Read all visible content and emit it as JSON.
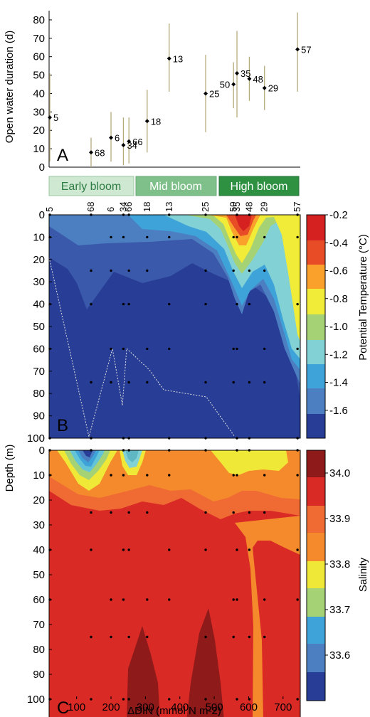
{
  "chart_data": [
    {
      "type": "scatter",
      "panel": "A",
      "ylabel": "Open water duration (d)",
      "ylim": [
        0,
        85
      ],
      "yticks": [
        0,
        10,
        20,
        30,
        40,
        50,
        60,
        70,
        80
      ],
      "xlim": [
        20,
        750
      ],
      "error_bar_color": "#b5a97a",
      "points": [
        {
          "label": "5",
          "x": 22,
          "y": 27,
          "lo": 3,
          "hi": 51
        },
        {
          "label": "68",
          "x": 142,
          "y": 8,
          "lo": 0,
          "hi": 16
        },
        {
          "label": "6",
          "x": 200,
          "y": 16,
          "lo": 3,
          "hi": 30
        },
        {
          "label": "34",
          "x": 236,
          "y": 12,
          "lo": 1,
          "hi": 27
        },
        {
          "label": "66",
          "x": 252,
          "y": 14,
          "lo": 2,
          "hi": 27
        },
        {
          "label": "18",
          "x": 305,
          "y": 25,
          "lo": 8,
          "hi": 42
        },
        {
          "label": "13",
          "x": 369,
          "y": 59,
          "lo": 41,
          "hi": 78
        },
        {
          "label": "25",
          "x": 475,
          "y": 40,
          "lo": 19,
          "hi": 61
        },
        {
          "label": "50",
          "x": 556,
          "y": 45,
          "lo": 32,
          "hi": 57
        },
        {
          "label": "35",
          "x": 566,
          "y": 51,
          "lo": 27,
          "hi": 74
        },
        {
          "label": "48",
          "x": 602,
          "y": 48,
          "lo": 36,
          "hi": 60
        },
        {
          "label": "29",
          "x": 646,
          "y": 43,
          "lo": 31,
          "hi": 55
        },
        {
          "label": "57",
          "x": 742,
          "y": 64,
          "lo": 41,
          "hi": 84
        }
      ],
      "bloom_stages": [
        {
          "label": "Early bloom",
          "fill": "#cfe8d1",
          "text_color": "#2e7d45"
        },
        {
          "label": "Mid bloom",
          "fill": "#7fbf8a",
          "text_color": "#ffffff"
        },
        {
          "label": "High bloom",
          "fill": "#2e9142",
          "text_color": "#ffffff"
        }
      ]
    },
    {
      "type": "heatmap",
      "panel": "B",
      "ylabel": "Depth (m)",
      "ylim": [
        100,
        0
      ],
      "yticks": [
        0,
        10,
        20,
        30,
        40,
        50,
        60,
        70,
        80,
        90,
        100
      ],
      "xlim": [
        20,
        750
      ],
      "station_labels_top": [
        "5",
        "68",
        "6",
        "34",
        "66",
        "18",
        "13",
        "25",
        "50",
        "35",
        "48",
        "29",
        "57"
      ],
      "colorbar": {
        "label": "Potential Temperature (°C)",
        "min": -1.8,
        "max": -0.2,
        "ticks": [
          "-0.2",
          "-0.4",
          "-0.6",
          "-0.8",
          "-1.0",
          "-1.2",
          "-1.4",
          "-1.6"
        ]
      }
    },
    {
      "type": "heatmap",
      "panel": "C",
      "ylim": [
        100,
        0
      ],
      "yticks": [
        0,
        10,
        20,
        30,
        40,
        50,
        60,
        70,
        80,
        90,
        100
      ],
      "xlabel": "ΔDIN (mmol N m-2)",
      "xlim": [
        20,
        750
      ],
      "xticks": [
        100,
        200,
        300,
        400,
        500,
        600,
        700
      ],
      "colorbar": {
        "label": "Salinity",
        "min": 33.5,
        "max": 34.05,
        "ticks": [
          "34.0",
          "33.9",
          "33.8",
          "33.7",
          "33.6"
        ]
      }
    }
  ]
}
